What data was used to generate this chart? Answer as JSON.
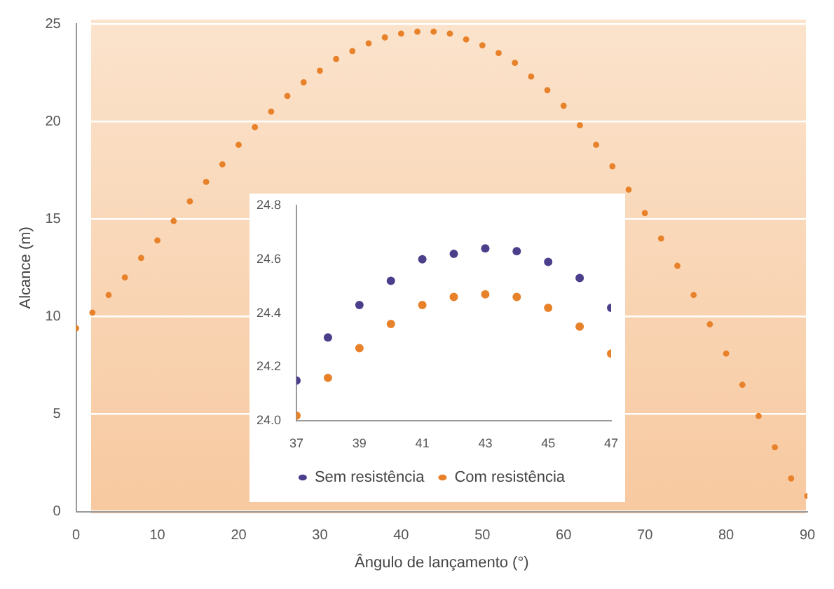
{
  "chart_data": [
    {
      "type": "scatter",
      "xlabel": "Ângulo de lançamento (°)",
      "ylabel": "Alcance (m)",
      "x": [
        0,
        2,
        4,
        6,
        8,
        10,
        12,
        14,
        16,
        18,
        20,
        22,
        24,
        26,
        28,
        30,
        32,
        34,
        36,
        38,
        40,
        42,
        44,
        46,
        48,
        50,
        52,
        54,
        56,
        58,
        60,
        62,
        64,
        66,
        68,
        70,
        72,
        74,
        76,
        78,
        80,
        82,
        84,
        86,
        88,
        90
      ],
      "series": [
        {
          "color": "#e8822a",
          "values": [
            9.4,
            10.2,
            11.1,
            12.0,
            13.0,
            13.9,
            14.9,
            15.9,
            16.9,
            17.8,
            18.8,
            19.7,
            20.5,
            21.3,
            22.0,
            22.6,
            23.2,
            23.6,
            24.0,
            24.3,
            24.5,
            24.6,
            24.6,
            24.5,
            24.2,
            23.9,
            23.5,
            23.0,
            22.3,
            21.6,
            20.8,
            19.8,
            18.8,
            17.7,
            16.5,
            15.3,
            14.0,
            12.6,
            11.1,
            9.6,
            8.1,
            6.5,
            4.9,
            3.3,
            1.7,
            0.8
          ]
        }
      ],
      "xlim": [
        0,
        90
      ],
      "xticks": [
        0,
        10,
        20,
        30,
        40,
        50,
        60,
        70,
        80,
        90
      ],
      "ylim": [
        0,
        25
      ],
      "yticks": [
        0,
        5,
        10,
        15,
        20,
        25
      ],
      "grid": "y",
      "legend": false,
      "marker": "circle"
    },
    {
      "type": "scatter",
      "x": [
        37,
        38,
        39,
        40,
        41,
        42,
        43,
        44,
        45,
        46,
        47
      ],
      "series": [
        {
          "name": "Sem resistência",
          "color": "#4b3f8c",
          "values": [
            24.15,
            24.31,
            24.43,
            24.52,
            24.6,
            24.62,
            24.64,
            24.63,
            24.59,
            24.53,
            24.42
          ]
        },
        {
          "name": "Com resistência",
          "color": "#e8822a",
          "values": [
            24.02,
            24.16,
            24.27,
            24.36,
            24.43,
            24.46,
            24.47,
            24.46,
            24.42,
            24.35,
            24.25
          ]
        }
      ],
      "xlim": [
        37,
        47
      ],
      "xticks": [
        37,
        39,
        41,
        43,
        45,
        47
      ],
      "ylim": [
        24.0,
        24.8
      ],
      "yticks": [
        {
          "value": 24.0,
          "label": "24.0"
        },
        {
          "value": 24.2,
          "label": "24.2"
        },
        {
          "value": 24.4,
          "label": "24.4"
        },
        {
          "value": 24.6,
          "label": "24.6"
        },
        {
          "value": 24.8,
          "label": "24.8"
        }
      ],
      "grid": false,
      "legend": "bottom",
      "marker": "circle"
    }
  ]
}
